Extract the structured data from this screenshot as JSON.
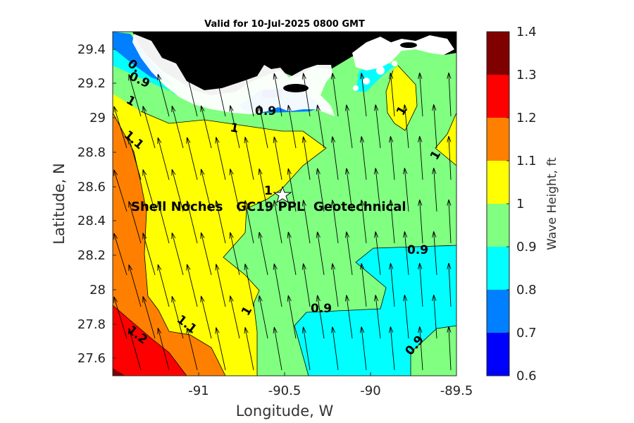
{
  "title": "Valid for 10-Jul-2025 0800 GMT",
  "xlabel": "Longitude, W",
  "ylabel": "Latitude, N",
  "x_ticks": [
    "-91",
    "-90.5",
    "-90",
    "-89.5"
  ],
  "y_ticks": [
    "29.4",
    "29.2",
    "29",
    "28.8",
    "28.6",
    "28.4",
    "28.2",
    "28",
    "27.8",
    "27.6"
  ],
  "colorbar": {
    "label": "Wave Height, ft",
    "ticks": [
      "0.6",
      "0.7",
      "0.8",
      "0.9",
      "1",
      "1.1",
      "1.2",
      "1.3",
      "1.4"
    ],
    "colors": [
      "#0000ff",
      "#0080ff",
      "#00ffff",
      "#80ff80",
      "#ffff00",
      "#ff8000",
      "#ff0000",
      "#800000"
    ]
  },
  "site_label": "Shell Noches   GC19 PPL  Geotechnical",
  "contour_labels": [
    "0.",
    "0.9",
    "1",
    "1.1",
    "1.2",
    "0.9",
    "1",
    "1",
    "1",
    "1",
    "1.1",
    "1",
    "0.9",
    "0.9",
    "0.9"
  ],
  "chart_data": {
    "type": "heatmap",
    "title": "Valid for 10-Jul-2025 0800 GMT",
    "xlabel": "Longitude, W",
    "ylabel": "Latitude, N",
    "xlim": [
      -91.5,
      -89.5
    ],
    "ylim": [
      27.5,
      29.5
    ],
    "colorbar": {
      "label": "Wave Height, ft",
      "levels": [
        0.6,
        0.7,
        0.8,
        0.9,
        1.0,
        1.1,
        1.2,
        1.3,
        1.4
      ]
    },
    "wave_height_ranges": {
      "min": 0.7,
      "max": 1.3
    },
    "site": {
      "name": "Shell Noches GC19 PPL Geotechnical",
      "lon": -90.53,
      "lat": 28.55
    },
    "vectors": "wave direction arrows pointing roughly north-northwest"
  }
}
